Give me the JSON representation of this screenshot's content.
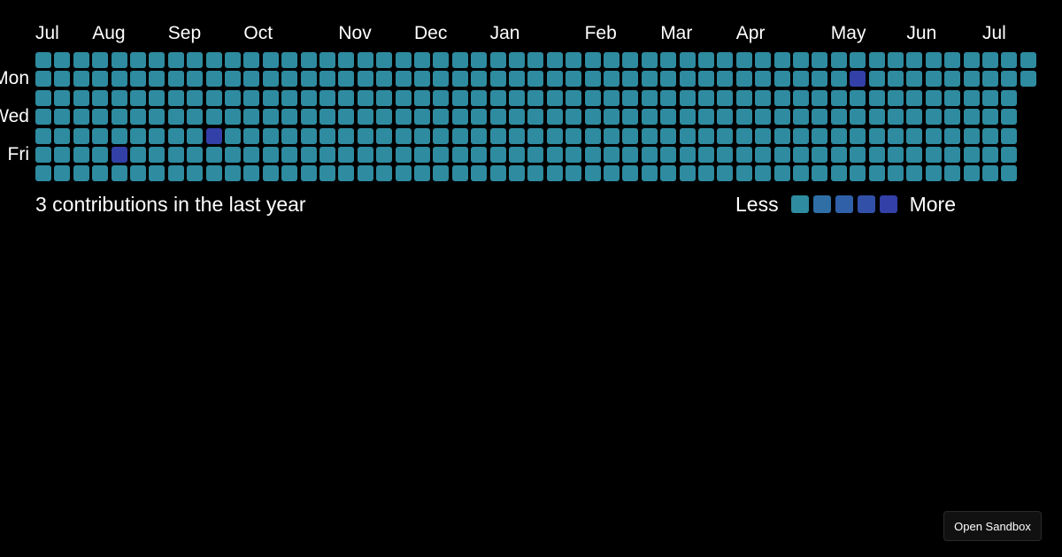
{
  "months": [
    {
      "label": "Jul",
      "week": 0
    },
    {
      "label": "Aug",
      "week": 3
    },
    {
      "label": "Sep",
      "week": 7
    },
    {
      "label": "Oct",
      "week": 11
    },
    {
      "label": "Nov",
      "week": 16
    },
    {
      "label": "Dec",
      "week": 20
    },
    {
      "label": "Jan",
      "week": 24
    },
    {
      "label": "Feb",
      "week": 29
    },
    {
      "label": "Mar",
      "week": 33
    },
    {
      "label": "Apr",
      "week": 37
    },
    {
      "label": "May",
      "week": 42
    },
    {
      "label": "Jun",
      "week": 46
    },
    {
      "label": "Jul",
      "week": 50
    }
  ],
  "days": [
    {
      "label": "Mon",
      "row": 1
    },
    {
      "label": "Wed",
      "row": 3
    },
    {
      "label": "Fri",
      "row": 5
    }
  ],
  "grid": {
    "weeks": 53,
    "rows": 7,
    "last_week_rows": 2,
    "contributions": [
      {
        "week": 4,
        "row": 5,
        "level": 4
      },
      {
        "week": 9,
        "row": 4,
        "level": 4
      },
      {
        "week": 43,
        "row": 1,
        "level": 4
      }
    ]
  },
  "summary": "3 contributions in the last year",
  "legend": {
    "less": "Less",
    "more": "More"
  },
  "colors": {
    "background": "#000000",
    "levels": [
      "#2e8ba0",
      "#2f6fa6",
      "#3060a8",
      "#3250a8",
      "#3340a8"
    ]
  },
  "sandbox_button": "Open Sandbox"
}
